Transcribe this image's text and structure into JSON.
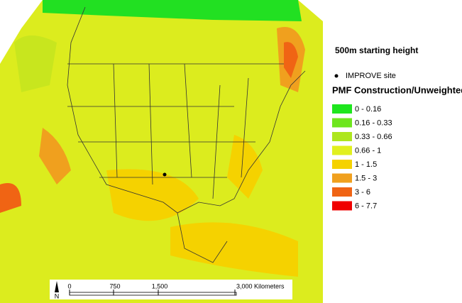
{
  "map": {
    "title": "500m starting height",
    "marker_legend": {
      "label": "IMPROVE site"
    },
    "legend": {
      "title": "PMF Construction/Unweighted",
      "items": [
        {
          "label": "0 - 0.16",
          "color": "#1ee61e"
        },
        {
          "label": "0.16 - 0.33",
          "color": "#6ee61e"
        },
        {
          "label": "0.33 - 0.66",
          "color": "#aee61e"
        },
        {
          "label": "0.66 - 1",
          "color": "#e1f01e"
        },
        {
          "label": "1 - 1.5",
          "color": "#f5d200"
        },
        {
          "label": "1.5 - 3",
          "color": "#f0a01e"
        },
        {
          "label": "3 - 6",
          "color": "#f06414"
        },
        {
          "label": "6 - 7.7",
          "color": "#f00000"
        }
      ]
    },
    "north_label": "N",
    "scale_bar": {
      "labels": [
        "0",
        "750",
        "1,500",
        "3,000 Kilometers"
      ]
    }
  }
}
